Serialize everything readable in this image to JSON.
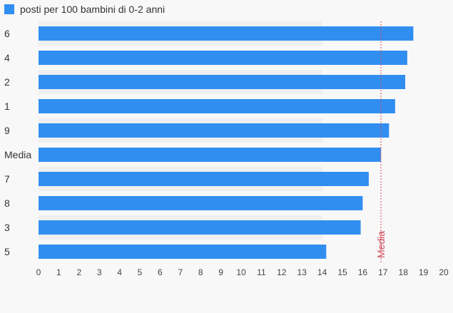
{
  "chart_data": {
    "type": "bar",
    "orientation": "horizontal",
    "title": "",
    "xlabel": "",
    "ylabel": "",
    "categories": [
      "6",
      "4",
      "2",
      "1",
      "9",
      "Media",
      "7",
      "8",
      "3",
      "5"
    ],
    "series": [
      {
        "name": "posti per 100 bambini di 0-2 anni",
        "values": [
          18.5,
          18.2,
          18.1,
          17.6,
          17.3,
          16.9,
          16.3,
          16.0,
          15.9,
          14.2
        ]
      }
    ],
    "xlim": [
      0,
      20
    ],
    "xticks": [
      0,
      1,
      2,
      3,
      4,
      5,
      6,
      7,
      8,
      9,
      10,
      11,
      12,
      13,
      14,
      15,
      16,
      17,
      18,
      19,
      20
    ],
    "reference_line": {
      "label": "Media",
      "value": 16.9
    },
    "band_shading_until": 14,
    "legend_position": "top-left",
    "grid": false,
    "colors": {
      "bar": "#318ef1",
      "reference": "#d04a5a",
      "band": "#efefef",
      "background": "#f8f8f8"
    }
  }
}
